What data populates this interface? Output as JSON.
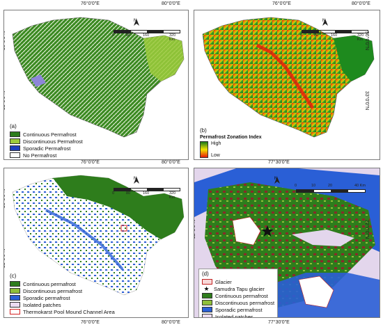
{
  "coords": {
    "lon_76": "76°0'0\"E",
    "lon_80": "80°0'0\"E",
    "lat_36": "36°0'0\"N",
    "lat_33": "33°0'0\"N",
    "d_lon_7730": "77°30'0\"E",
    "d_lat_32": "32°0'0\"N"
  },
  "scalebar": {
    "main": [
      "0",
      "80",
      "160",
      "320 Km"
    ],
    "d": [
      "0",
      "10",
      "20",
      "40 Km"
    ]
  },
  "north": "N",
  "panel_a": {
    "label": "(a)",
    "legend": [
      {
        "label": "Continuous Permafrost",
        "color": "#2e7d1c"
      },
      {
        "label": "Discontinuous Permafrost",
        "color": "#9ecb3c"
      },
      {
        "label": "Sporadic Permafrost",
        "color": "#1f3fbf"
      },
      {
        "label": "No Permafrost",
        "color": "#ffffff"
      }
    ]
  },
  "panel_b": {
    "label": "(b)",
    "legend_title": "Permafrost Zonation Index",
    "high": "High",
    "low": "Low",
    "ramp": [
      "#1a7a1a",
      "#f2e200",
      "#e81a0a"
    ]
  },
  "panel_c": {
    "label": "(c)",
    "legend": [
      {
        "label": "Continuous permafrost",
        "color": "#2e7d1c"
      },
      {
        "label": "Discontinuous permafrost",
        "color": "#8fbf3a"
      },
      {
        "label": "Sporadic permafrost",
        "color": "#2a5fd6"
      },
      {
        "label": "Isolated patches",
        "color": "#ecdcf2"
      },
      {
        "label": "Thermokarst Pool Mound Channel Area",
        "color": "#ffffff",
        "border": "#d42020"
      }
    ]
  },
  "panel_d": {
    "label": "(d)",
    "legend": [
      {
        "label": "Glacier",
        "color": "#f7d8d8",
        "border": "#c02020"
      },
      {
        "label": "Samudra Tapu glacier",
        "symbol": "star"
      },
      {
        "label": "Continuous permafrost",
        "color": "#2e7d1c"
      },
      {
        "label": "Discontinuous permafrost",
        "color": "#8fbf3a"
      },
      {
        "label": "Sporadic permafrost",
        "color": "#2a5fd6"
      },
      {
        "label": "Isolated patches",
        "color": "#ecdcf2"
      }
    ]
  }
}
